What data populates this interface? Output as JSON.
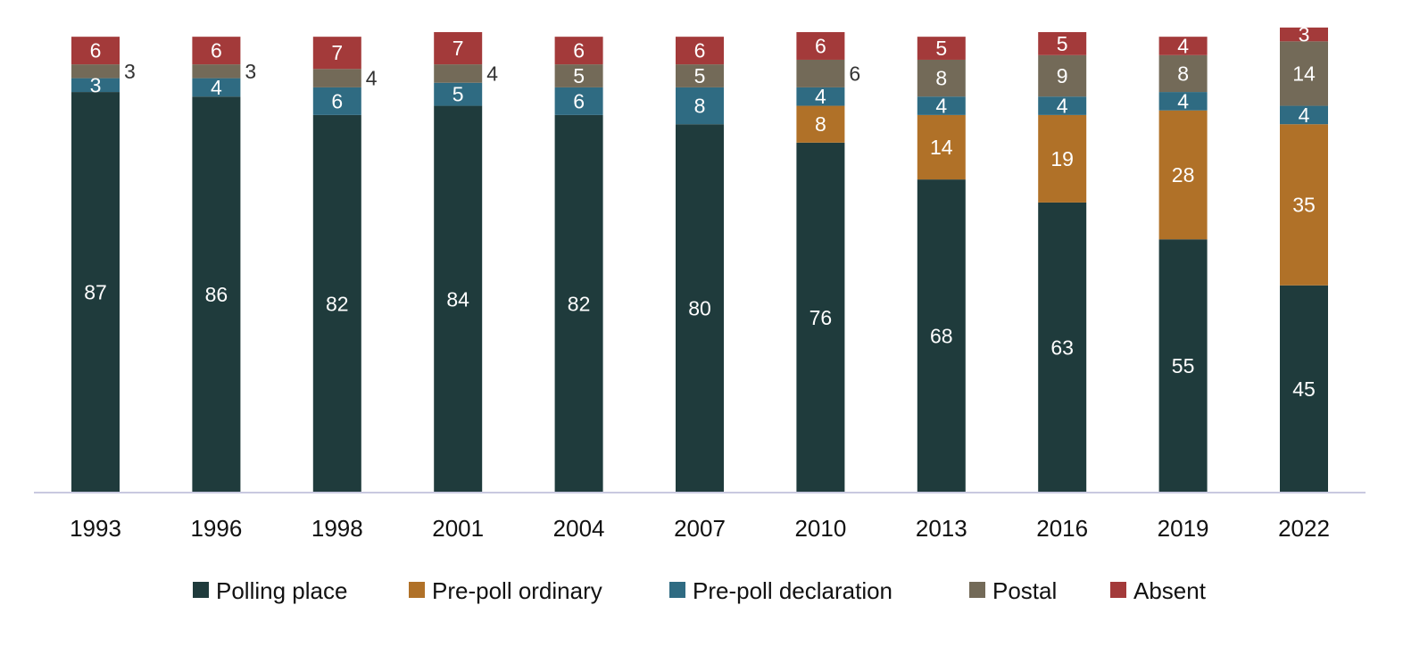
{
  "chart_data": {
    "type": "bar",
    "stacked": true,
    "title": "",
    "xlabel": "",
    "ylabel": "",
    "ylim": [
      0,
      100
    ],
    "grid": false,
    "legend_position": "bottom",
    "categories": [
      "1993",
      "1996",
      "1998",
      "2001",
      "2004",
      "2007",
      "2010",
      "2013",
      "2016",
      "2019",
      "2022"
    ],
    "series": [
      {
        "name": "Polling place",
        "color": "#1f3b3c",
        "values": [
          87,
          86,
          82,
          84,
          82,
          80,
          76,
          68,
          63,
          55,
          45
        ]
      },
      {
        "name": "Pre-poll ordinary",
        "color": "#b07128",
        "values": [
          0,
          0,
          0,
          0,
          0,
          0,
          8,
          14,
          19,
          28,
          35
        ]
      },
      {
        "name": "Pre-poll declaration",
        "color": "#2f6b82",
        "values": [
          3,
          4,
          6,
          5,
          6,
          8,
          4,
          4,
          4,
          4,
          4
        ]
      },
      {
        "name": "Postal",
        "color": "#736a58",
        "values": [
          3,
          3,
          4,
          4,
          5,
          5,
          6,
          8,
          9,
          8,
          14
        ]
      },
      {
        "name": "Absent",
        "color": "#a33a3a",
        "values": [
          6,
          6,
          7,
          7,
          6,
          6,
          6,
          5,
          5,
          4,
          3
        ]
      }
    ]
  }
}
